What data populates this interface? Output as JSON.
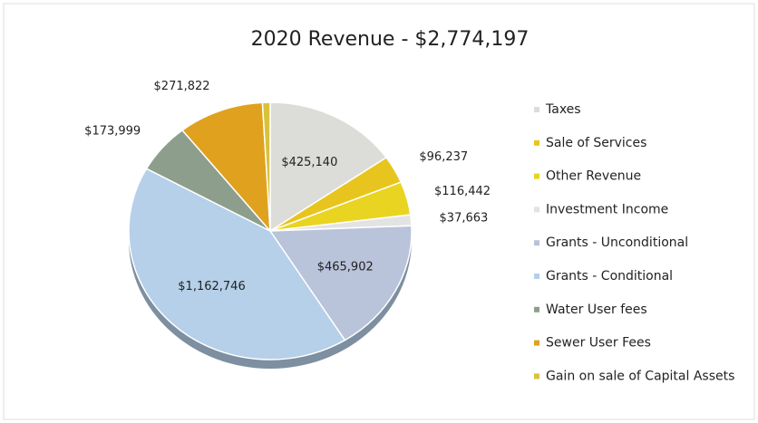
{
  "chart_data": {
    "type": "pie",
    "title": "2020 Revenue - $2,774,197",
    "categories": [
      "Taxes",
      "Sale of Services",
      "Other Revenue",
      "Investment Income",
      "Grants - Unconditional",
      "Grants - Conditional",
      "Water User fees",
      "Sewer User Fees",
      "Gain on sale of Capital Assets"
    ],
    "values": [
      425140,
      96237,
      116442,
      37663,
      465902,
      1162746,
      173999,
      271822,
      24246
    ],
    "value_labels": [
      "$425,140",
      "$96,237",
      "$116,442",
      "$37,663",
      "$465,902",
      "$1,162,746",
      "$173,999",
      "$271,822",
      null
    ],
    "colors": [
      "#dcdcd8",
      "#e8c51e",
      "#e9d421",
      "#e3e3e3",
      "#b9c3da",
      "#b5d0e8",
      "#8e9e8c",
      "#e0a11e",
      "#d8c23a"
    ],
    "legend": "right"
  }
}
